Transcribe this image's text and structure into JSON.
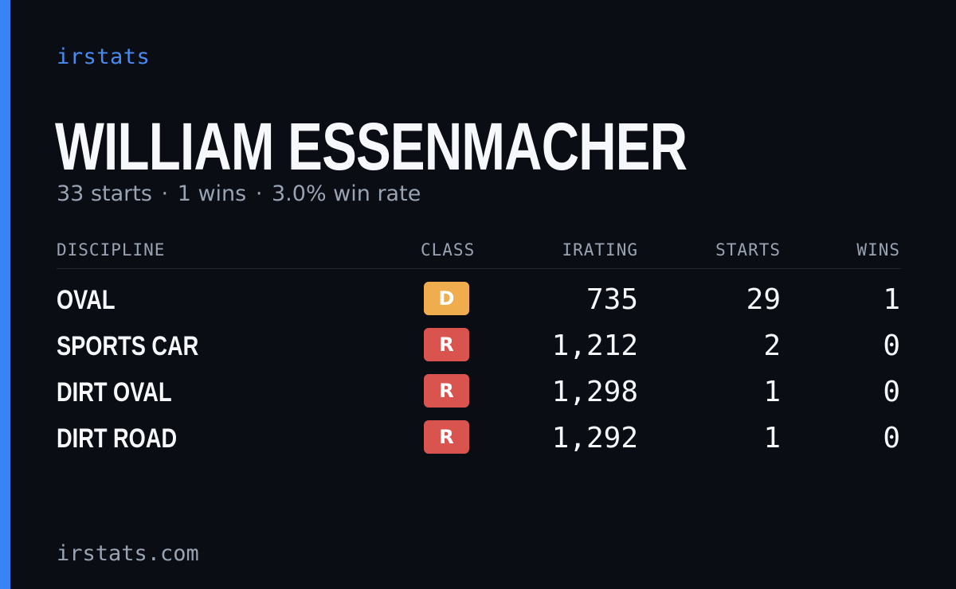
{
  "brand": "irstats",
  "driver": {
    "name": "WILLIAM ESSENMACHER",
    "starts_text": "33 starts",
    "wins_text": "1 wins",
    "win_rate_text": "3.0% win rate",
    "separator": "·"
  },
  "table": {
    "headers": {
      "discipline": "DISCIPLINE",
      "class": "CLASS",
      "irating": "IRATING",
      "starts": "STARTS",
      "wins": "WINS"
    },
    "rows": [
      {
        "discipline": "OVAL",
        "class": "D",
        "class_color": "#f0ad4e",
        "irating": "735",
        "starts": "29",
        "wins": "1"
      },
      {
        "discipline": "SPORTS CAR",
        "class": "R",
        "class_color": "#d9534f",
        "irating": "1,212",
        "starts": "2",
        "wins": "0"
      },
      {
        "discipline": "DIRT OVAL",
        "class": "R",
        "class_color": "#d9534f",
        "irating": "1,298",
        "starts": "1",
        "wins": "0"
      },
      {
        "discipline": "DIRT ROAD",
        "class": "R",
        "class_color": "#d9534f",
        "irating": "1,292",
        "starts": "1",
        "wins": "0"
      }
    ]
  },
  "footer": "irstats.com",
  "colors": {
    "accent": "#3b82f6",
    "background": "#0a0d14",
    "muted_text": "#9aa3b2"
  }
}
